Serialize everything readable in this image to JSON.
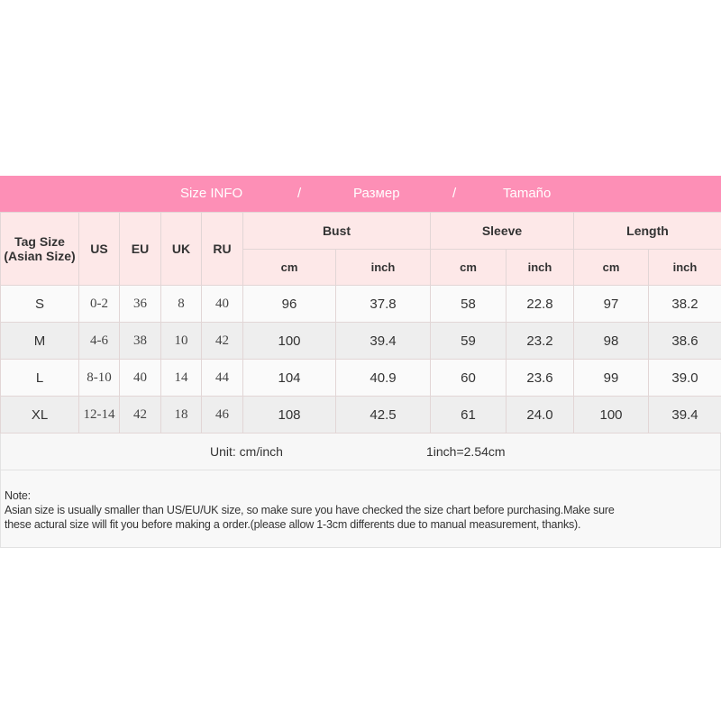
{
  "banner": {
    "title1": "Size INFO",
    "sep1": "/",
    "title2": "Размер",
    "sep2": "/",
    "title3": "Tamaño"
  },
  "headers": {
    "tag_size": "Tag Size (Asian Size)",
    "us": "US",
    "eu": "EU",
    "uk": "UK",
    "ru": "RU",
    "bust": "Bust",
    "sleeve": "Sleeve",
    "length": "Length",
    "cm": "cm",
    "inch": "inch"
  },
  "rows": [
    {
      "tag": "S",
      "us": "0-2",
      "eu": "36",
      "uk": "8",
      "ru": "40",
      "bust_cm": "96",
      "bust_in": "37.8",
      "sleeve_cm": "58",
      "sleeve_in": "22.8",
      "length_cm": "97",
      "length_in": "38.2"
    },
    {
      "tag": "M",
      "us": "4-6",
      "eu": "38",
      "uk": "10",
      "ru": "42",
      "bust_cm": "100",
      "bust_in": "39.4",
      "sleeve_cm": "59",
      "sleeve_in": "23.2",
      "length_cm": "98",
      "length_in": "38.6"
    },
    {
      "tag": "L",
      "us": "8-10",
      "eu": "40",
      "uk": "14",
      "ru": "44",
      "bust_cm": "104",
      "bust_in": "40.9",
      "sleeve_cm": "60",
      "sleeve_in": "23.6",
      "length_cm": "99",
      "length_in": "39.0"
    },
    {
      "tag": "XL",
      "us": "12-14",
      "eu": "42",
      "uk": "18",
      "ru": "46",
      "bust_cm": "108",
      "bust_in": "42.5",
      "sleeve_cm": "61",
      "sleeve_in": "24.0",
      "length_cm": "100",
      "length_in": "39.4"
    }
  ],
  "unit": {
    "label": "Unit: cm/inch",
    "conversion": "1inch=2.54cm"
  },
  "note": {
    "title": "Note:",
    "line1": "Asian size is usually smaller than US/EU/UK size, so make sure you have checked the size chart before purchasing.Make sure",
    "line2": "these actural size will fit you before making a order.(please allow 1-3cm differents due to manual measurement, thanks)."
  },
  "colors": {
    "banner": "#fd8fb6",
    "header_cell": "#fde8e8"
  }
}
